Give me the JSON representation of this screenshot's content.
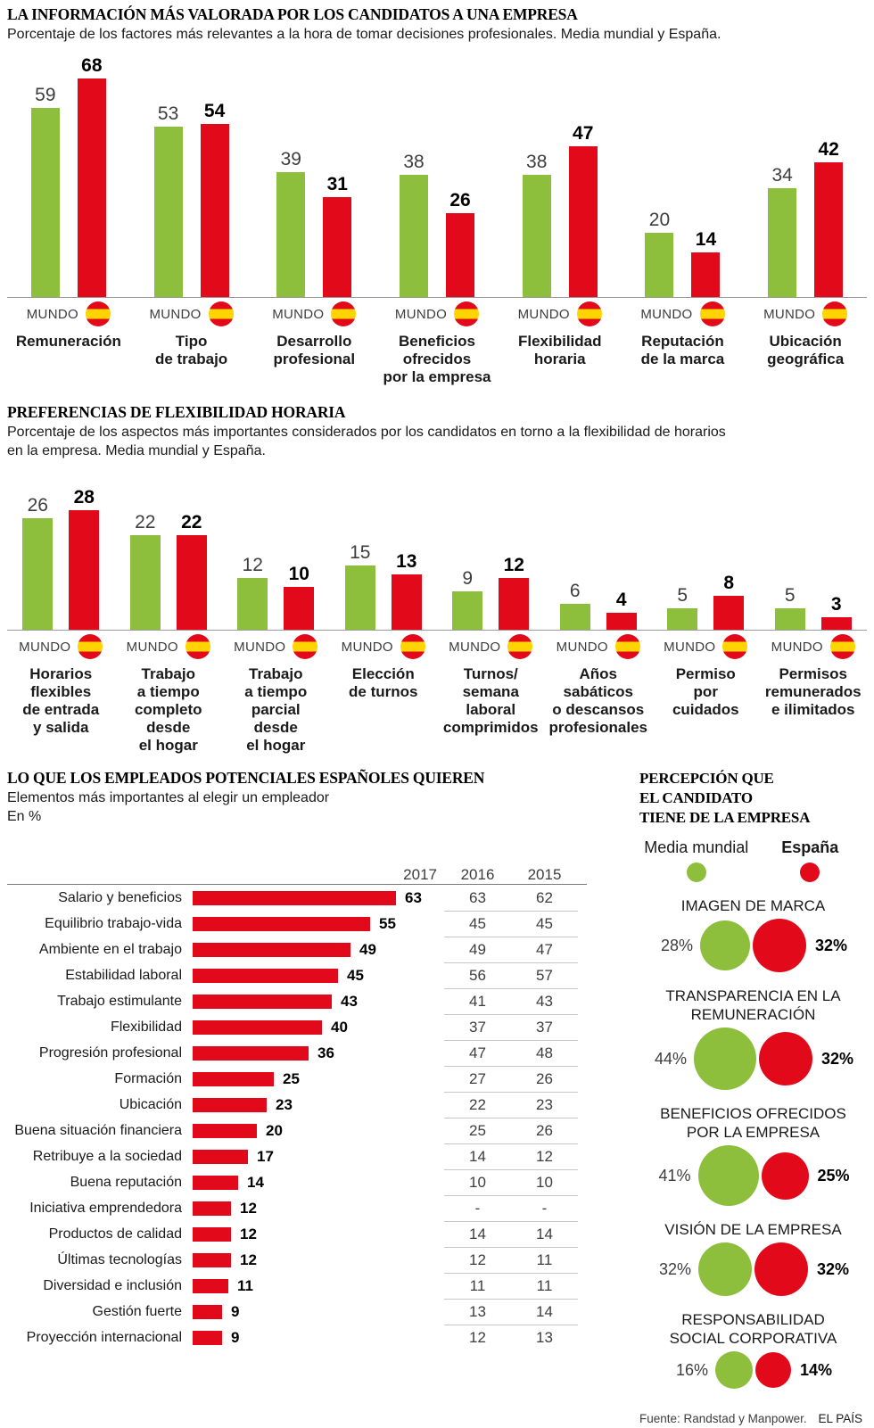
{
  "page": {
    "source": "Fuente: Randstad y Manpower.",
    "brand": "EL PAÍS"
  },
  "colors": {
    "world_green": "#8dbf3c",
    "spain_red": "#e2091a",
    "flag_yellow": "#ffd400"
  },
  "chart_data": [
    {
      "id": "most_valued_information",
      "type": "bar",
      "title": "LA INFORMACIÓN MÁS VALORADA POR LOS CANDIDATOS A UNA EMPRESA",
      "subtitle": "Porcentaje de los factores más relevantes a la hora de tomar decisiones profesionales. Media mundial y España.",
      "axis_item_label": "MUNDO",
      "categories": [
        "Remuneración",
        "Tipo\nde trabajo",
        "Desarrollo\nprofesional",
        "Beneficios ofrecidos\npor la empresa",
        "Flexibilidad\nhoraria",
        "Reputación\nde la marca",
        "Ubicación\ngeográfica"
      ],
      "series": [
        {
          "name": "Mundo",
          "color": "#8dbf3c",
          "values": [
            59,
            53,
            39,
            38,
            38,
            20,
            34
          ]
        },
        {
          "name": "España",
          "color": "#e2091a",
          "values": [
            68,
            54,
            31,
            26,
            47,
            14,
            42
          ]
        }
      ],
      "ylim": [
        0,
        68
      ],
      "grid": false,
      "legend_position": "none"
    },
    {
      "id": "flexibility_preferences",
      "type": "bar",
      "title": "PREFERENCIAS DE FLEXIBILIDAD HORARIA",
      "subtitle": "Porcentaje de los aspectos más importantes considerados por los candidatos en torno a la flexibilidad de horarios\nen la empresa. Media mundial y España.",
      "axis_item_label": "MUNDO",
      "categories": [
        "Horarios\nflexibles\nde entrada\ny salida",
        "Trabajo\na tiempo\ncompleto\ndesde\nel hogar",
        "Trabajo\na tiempo\nparcial\ndesde\nel hogar",
        "Elección\nde turnos",
        "Turnos/\nsemana\nlaboral\ncomprimidos",
        "Años sabáticos\no descansos\nprofesionales",
        "Permiso\npor\ncuidados",
        "Permisos\nremunerados\ne ilimitados"
      ],
      "series": [
        {
          "name": "Mundo",
          "color": "#8dbf3c",
          "values": [
            26,
            22,
            12,
            15,
            9,
            6,
            5,
            5
          ]
        },
        {
          "name": "España",
          "color": "#e2091a",
          "values": [
            28,
            22,
            10,
            13,
            12,
            4,
            8,
            3
          ]
        }
      ],
      "ylim": [
        0,
        28
      ],
      "grid": false,
      "legend_position": "none"
    },
    {
      "id": "what_potential_spanish_employees_want",
      "type": "bar",
      "orientation": "horizontal",
      "title": "LO QUE LOS EMPLEADOS POTENCIALES ESPAÑOLES QUIEREN",
      "subtitle": "Elementos más importantes al elegir un empleador",
      "unit_label": "En %",
      "columns": [
        "2017",
        "2016",
        "2015"
      ],
      "rows": [
        {
          "label": "Salario y beneficios",
          "y2017": 63,
          "y2016": "63",
          "y2015": "62"
        },
        {
          "label": "Equilibrio trabajo-vida",
          "y2017": 55,
          "y2016": "45",
          "y2015": "45"
        },
        {
          "label": "Ambiente en el trabajo",
          "y2017": 49,
          "y2016": "49",
          "y2015": "47"
        },
        {
          "label": "Estabilidad laboral",
          "y2017": 45,
          "y2016": "56",
          "y2015": "57"
        },
        {
          "label": "Trabajo estimulante",
          "y2017": 43,
          "y2016": "41",
          "y2015": "43"
        },
        {
          "label": "Flexibilidad",
          "y2017": 40,
          "y2016": "37",
          "y2015": "37"
        },
        {
          "label": "Progresión profesional",
          "y2017": 36,
          "y2016": "47",
          "y2015": "48"
        },
        {
          "label": "Formación",
          "y2017": 25,
          "y2016": "27",
          "y2015": "26"
        },
        {
          "label": "Ubicación",
          "y2017": 23,
          "y2016": "22",
          "y2015": "23"
        },
        {
          "label": "Buena situación financiera",
          "y2017": 20,
          "y2016": "25",
          "y2015": "26"
        },
        {
          "label": "Retribuye a la sociedad",
          "y2017": 17,
          "y2016": "14",
          "y2015": "12"
        },
        {
          "label": "Buena reputación",
          "y2017": 14,
          "y2016": "10",
          "y2015": "10"
        },
        {
          "label": "Iniciativa emprendedora",
          "y2017": 12,
          "y2016": "-",
          "y2015": "-"
        },
        {
          "label": "Productos de calidad",
          "y2017": 12,
          "y2016": "14",
          "y2015": "14"
        },
        {
          "label": "Últimas tecnologías",
          "y2017": 12,
          "y2016": "12",
          "y2015": "11"
        },
        {
          "label": "Diversidad e inclusión",
          "y2017": 11,
          "y2016": "11",
          "y2015": "11"
        },
        {
          "label": "Gestión fuerte",
          "y2017": 9,
          "y2016": "13",
          "y2015": "14"
        },
        {
          "label": "Proyección internacional",
          "y2017": 9,
          "y2016": "12",
          "y2015": "13"
        }
      ],
      "xlim": [
        0,
        63
      ],
      "grid": false
    },
    {
      "id": "candidate_perception_of_company",
      "type": "bubble",
      "title": "PERCEPCIÓN QUE\nEL CANDIDATO\nTIENE DE LA EMPRESA",
      "legend": [
        {
          "label": "Media mundial",
          "color": "#8dbf3c"
        },
        {
          "label": "España",
          "color": "#e2091a"
        }
      ],
      "metrics": [
        {
          "label": "IMAGEN DE MARCA",
          "world": 28,
          "spain": 32
        },
        {
          "label": "TRANSPARENCIA EN LA\nREMUNERACIÓN",
          "world": 44,
          "spain": 32
        },
        {
          "label": "BENEFICIOS OFRECIDOS\nPOR LA EMPRESA",
          "world": 41,
          "spain": 25
        },
        {
          "label": "VISIÓN DE LA EMPRESA",
          "world": 32,
          "spain": 32
        },
        {
          "label": "RESPONSABILIDAD\nSOCIAL CORPORATIVA",
          "world": 16,
          "spain": 14
        }
      ],
      "value_unit": "%"
    }
  ]
}
